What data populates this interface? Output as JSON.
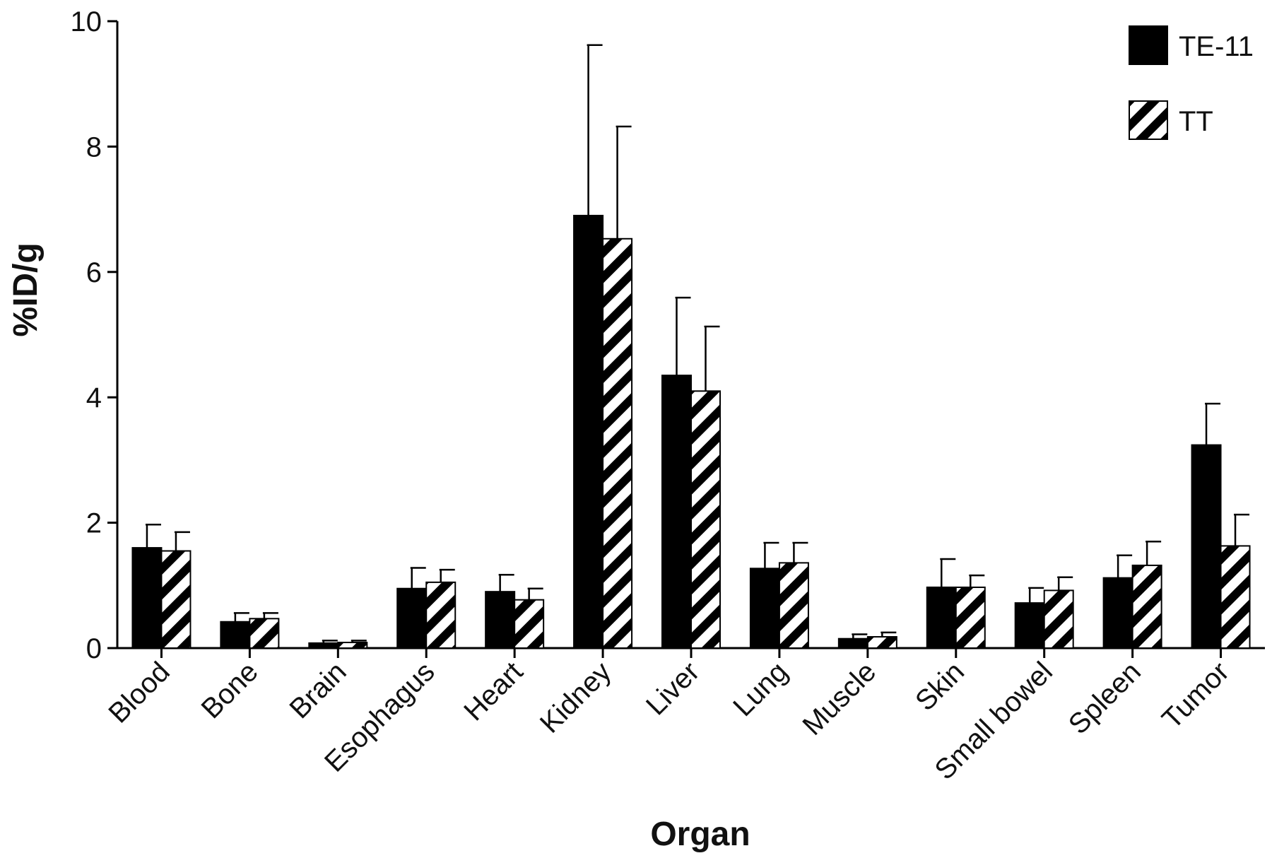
{
  "chart_data": {
    "type": "bar",
    "title": "",
    "xlabel": "Organ",
    "ylabel": "%ID/g",
    "ylim": [
      0,
      10
    ],
    "yticks": [
      "0",
      "2",
      "4",
      "6",
      "8",
      "10"
    ],
    "categories": [
      "Blood",
      "Bone",
      "Brain",
      "Esophagus",
      "Heart",
      "Kidney",
      "Liver",
      "Lung",
      "Muscle",
      "Skin",
      "Small bowel",
      "Spleen",
      "Tumor"
    ],
    "series": [
      {
        "name": "TE-11",
        "fill": "solid",
        "color": "#000000",
        "values": [
          1.6,
          0.42,
          0.08,
          0.95,
          0.9,
          6.9,
          4.35,
          1.27,
          0.15,
          0.97,
          0.72,
          1.12,
          3.24
        ],
        "errors": [
          0.37,
          0.14,
          0.04,
          0.33,
          0.27,
          2.72,
          1.24,
          0.41,
          0.07,
          0.45,
          0.24,
          0.36,
          0.66
        ]
      },
      {
        "name": "TT",
        "fill": "hatched",
        "color": "#000000",
        "values": [
          1.55,
          0.47,
          0.09,
          1.05,
          0.77,
          6.53,
          4.1,
          1.36,
          0.18,
          0.97,
          0.92,
          1.32,
          1.63
        ],
        "errors": [
          0.3,
          0.09,
          0.03,
          0.2,
          0.18,
          1.79,
          1.03,
          0.32,
          0.07,
          0.19,
          0.21,
          0.38,
          0.5
        ]
      }
    ],
    "legend_position": "top-right",
    "grid": false
  }
}
